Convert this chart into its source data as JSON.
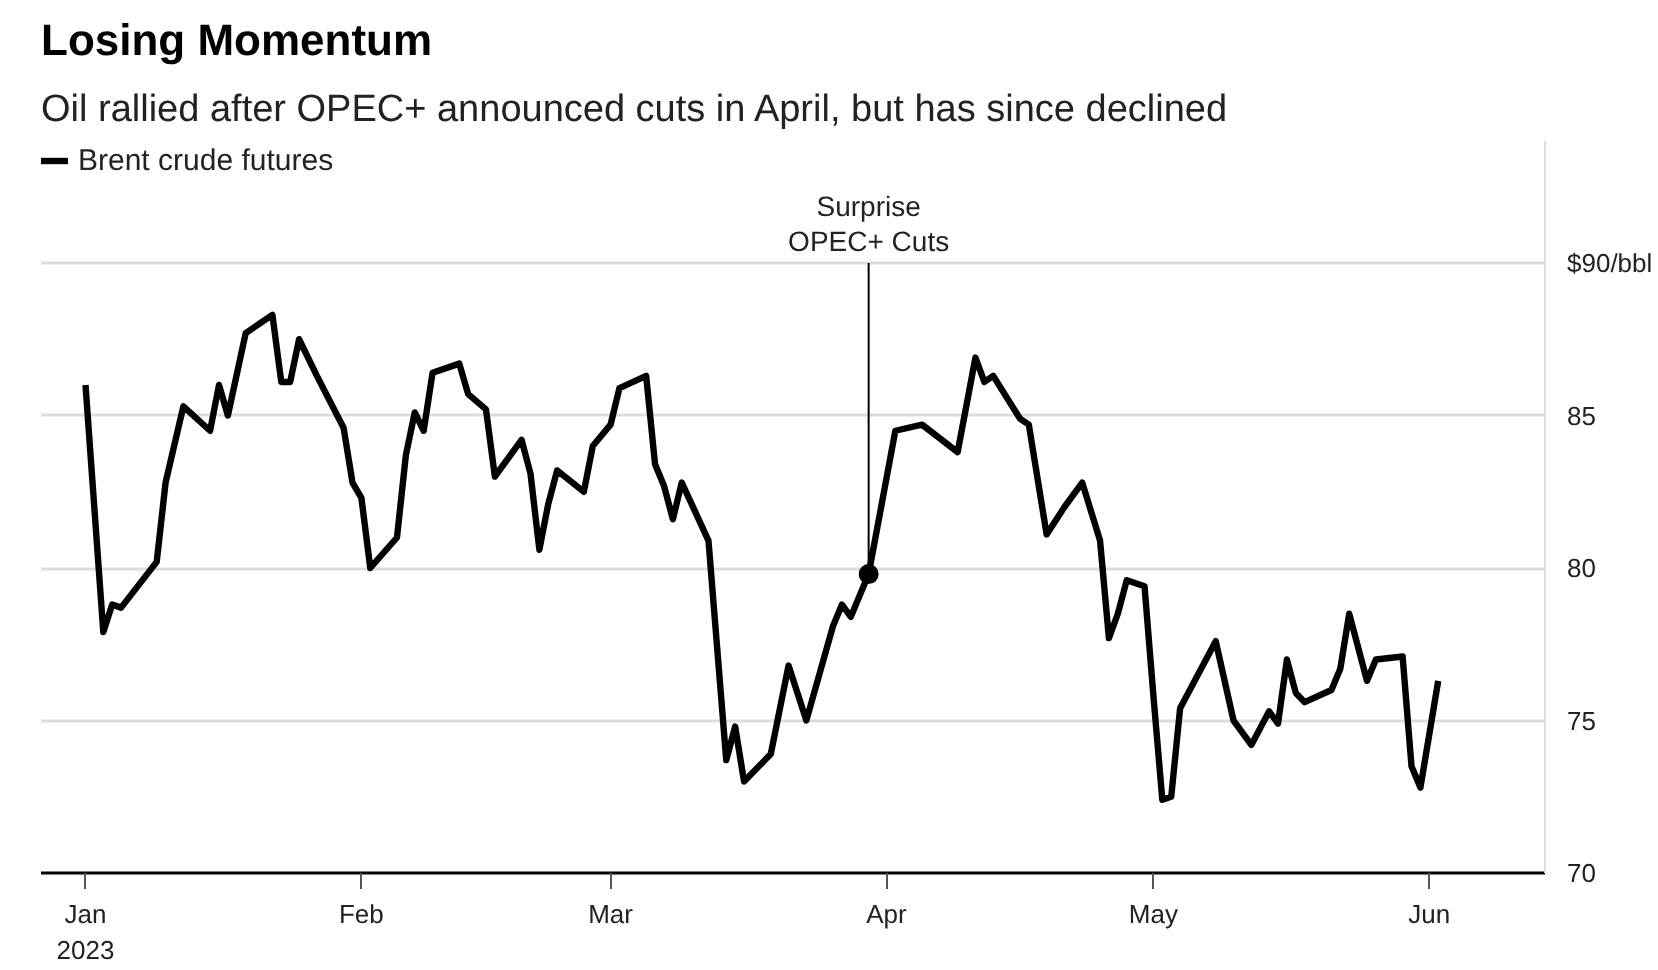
{
  "chart_data": {
    "type": "line",
    "title": "Losing Momentum",
    "subtitle": "Oil rallied after OPEC+ announced cuts in April, but has since declined",
    "x": [
      "2023-01-01",
      "2023-01-03",
      "2023-01-04",
      "2023-01-05",
      "2023-01-09",
      "2023-01-10",
      "2023-01-12",
      "2023-01-15",
      "2023-01-16",
      "2023-01-17",
      "2023-01-19",
      "2023-01-22",
      "2023-01-23",
      "2023-01-24",
      "2023-01-25",
      "2023-01-27",
      "2023-01-30",
      "2023-01-31",
      "2023-02-01",
      "2023-02-02",
      "2023-02-05",
      "2023-02-06",
      "2023-02-07",
      "2023-02-08",
      "2023-02-09",
      "2023-02-12",
      "2023-02-13",
      "2023-02-15",
      "2023-02-16",
      "2023-02-19",
      "2023-02-20",
      "2023-02-21",
      "2023-02-22",
      "2023-02-23",
      "2023-02-26",
      "2023-02-27",
      "2023-03-01",
      "2023-03-02",
      "2023-03-05",
      "2023-03-06",
      "2023-03-07",
      "2023-03-08",
      "2023-03-09",
      "2023-03-12",
      "2023-03-14",
      "2023-03-15",
      "2023-03-16",
      "2023-03-19",
      "2023-03-21",
      "2023-03-23",
      "2023-03-26",
      "2023-03-27",
      "2023-03-28",
      "2023-03-30",
      "2023-04-02",
      "2023-04-05",
      "2023-04-09",
      "2023-04-11",
      "2023-04-12",
      "2023-04-13",
      "2023-04-16",
      "2023-04-17",
      "2023-04-19",
      "2023-04-21",
      "2023-04-23",
      "2023-04-25",
      "2023-04-26",
      "2023-04-27",
      "2023-04-28",
      "2023-04-30",
      "2023-05-01",
      "2023-05-02",
      "2023-05-03",
      "2023-05-04",
      "2023-05-08",
      "2023-05-10",
      "2023-05-12",
      "2023-05-14",
      "2023-05-15",
      "2023-05-16",
      "2023-05-17",
      "2023-05-18",
      "2023-05-21",
      "2023-05-22",
      "2023-05-23",
      "2023-05-25",
      "2023-05-26",
      "2023-05-29",
      "2023-05-30",
      "2023-05-31",
      "2023-06-02"
    ],
    "series": [
      {
        "name": "Brent crude futures",
        "color": "#000000",
        "values": [
          86.0,
          77.9,
          78.8,
          78.7,
          80.2,
          82.8,
          85.3,
          84.5,
          86.0,
          85.0,
          87.7,
          88.3,
          86.1,
          86.1,
          87.5,
          86.3,
          84.6,
          82.8,
          82.3,
          80.0,
          81.0,
          83.7,
          85.1,
          84.5,
          86.4,
          86.7,
          85.7,
          85.2,
          83.0,
          84.2,
          83.1,
          80.6,
          82.1,
          83.2,
          82.5,
          84.0,
          84.7,
          85.9,
          86.3,
          83.4,
          82.7,
          81.6,
          82.8,
          80.9,
          73.7,
          74.8,
          73.0,
          73.9,
          76.8,
          75.0,
          78.1,
          78.8,
          78.4,
          79.8,
          84.5,
          84.7,
          83.8,
          86.9,
          86.1,
          86.3,
          84.9,
          84.7,
          81.1,
          82.0,
          82.8,
          80.9,
          77.7,
          78.5,
          79.6,
          79.4,
          75.8,
          72.4,
          72.5,
          75.4,
          77.6,
          75.0,
          74.2,
          75.3,
          74.9,
          77.0,
          75.9,
          75.6,
          76.0,
          76.7,
          78.5,
          76.3,
          77.0,
          77.1,
          73.5,
          72.8,
          76.3
        ]
      }
    ],
    "xlim": [
      "2022-12-27",
      "2023-06-14"
    ],
    "xticks": [
      {
        "value": "2023-01-01",
        "label": "Jan\n2023"
      },
      {
        "value": "2023-02-01",
        "label": "Feb"
      },
      {
        "value": "2023-03-01",
        "label": "Mar"
      },
      {
        "value": "2023-04-01",
        "label": "Apr"
      },
      {
        "value": "2023-05-01",
        "label": "May"
      },
      {
        "value": "2023-06-01",
        "label": "Jun"
      }
    ],
    "ylim": [
      70,
      94
    ],
    "yticks": [
      70,
      75,
      80,
      85,
      {
        "value": 90,
        "label": "$90/bbl"
      }
    ],
    "annotations": [
      {
        "text": "Surprise\nOPEC+ Cuts",
        "x": "2023-03-30",
        "y": 79.8
      }
    ],
    "grid": "y",
    "legend": "top left",
    "marker": "none",
    "line_style": "solid"
  }
}
